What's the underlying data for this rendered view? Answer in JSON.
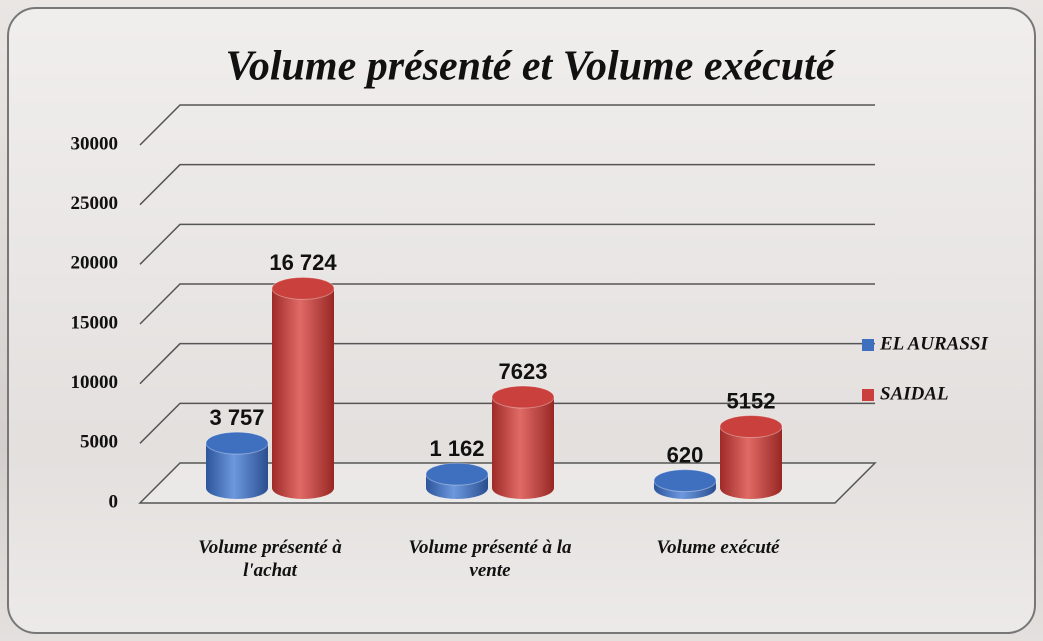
{
  "chart_data": {
    "type": "bar3d",
    "title": "Volume présenté et Volume exécuté",
    "categories": [
      "Volume présenté à l'achat",
      "Volume présenté à la vente",
      "Volume exécuté"
    ],
    "series": [
      {
        "name": "EL AURASSI",
        "color": "#3f6fbf",
        "values": [
          3757,
          1162,
          620
        ],
        "value_labels": [
          "3 757",
          "1 162",
          "620"
        ]
      },
      {
        "name": "SAIDAL",
        "color": "#c9403c",
        "values": [
          16724,
          7623,
          5152
        ],
        "value_labels": [
          "16 724",
          "7623",
          "5152"
        ]
      }
    ],
    "ylim": [
      0,
      30000
    ],
    "yticks": [
      0,
      5000,
      10000,
      15000,
      20000,
      25000,
      30000
    ],
    "grid": true,
    "legend": "right"
  }
}
